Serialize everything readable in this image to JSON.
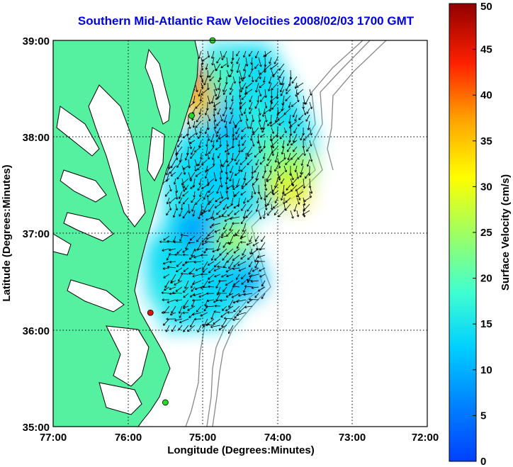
{
  "chart_data": {
    "type": "heatmap",
    "title": "Southern Mid-Atlantic Raw Velocities 2008/02/03 1700 GMT",
    "xlabel": "Longitude (Degrees:Minutes)",
    "ylabel": "Latitude (Degrees:Minutes)",
    "x_ticks": [
      "77:00",
      "76:00",
      "75:00",
      "74:00",
      "73:00",
      "72:00"
    ],
    "y_ticks": [
      "39:00",
      "38:00",
      "37:00",
      "36:00",
      "35:00"
    ],
    "xlim": [
      -77,
      -72
    ],
    "ylim": [
      35,
      39
    ],
    "grid": true,
    "colorbar": {
      "label": "Surface Velocity (cm/s)",
      "range": [
        0,
        50
      ],
      "ticks": [
        "0",
        "5",
        "10",
        "15",
        "20",
        "25",
        "30",
        "35",
        "40",
        "45",
        "50"
      ],
      "colormap": "jet"
    },
    "velocity_regions": [
      {
        "lon": -75.1,
        "lat": 38.55,
        "speed": 45
      },
      {
        "lon": -75.05,
        "lat": 38.35,
        "speed": 35
      },
      {
        "lon": -74.75,
        "lat": 38.65,
        "speed": 20
      },
      {
        "lon": -74.6,
        "lat": 38.1,
        "speed": 10
      },
      {
        "lon": -74.3,
        "lat": 38.2,
        "speed": 17
      },
      {
        "lon": -74.05,
        "lat": 37.85,
        "speed": 22
      },
      {
        "lon": -74.0,
        "lat": 37.5,
        "speed": 28
      },
      {
        "lon": -73.8,
        "lat": 37.45,
        "speed": 32
      },
      {
        "lon": -73.75,
        "lat": 37.7,
        "speed": 26
      },
      {
        "lon": -74.8,
        "lat": 37.55,
        "speed": 12
      },
      {
        "lon": -75.25,
        "lat": 37.3,
        "speed": 15
      },
      {
        "lon": -75.1,
        "lat": 37.05,
        "speed": 8
      },
      {
        "lon": -74.6,
        "lat": 36.95,
        "speed": 26
      },
      {
        "lon": -74.85,
        "lat": 36.55,
        "speed": 13
      },
      {
        "lon": -75.4,
        "lat": 36.4,
        "speed": 16
      },
      {
        "lon": -74.4,
        "lat": 36.5,
        "speed": 10
      }
    ],
    "station_markers": [
      {
        "lon": -74.87,
        "lat": 39.0,
        "status": "green"
      },
      {
        "lon": -75.15,
        "lat": 38.22,
        "status": "green"
      },
      {
        "lon": -75.7,
        "lat": 36.18,
        "status": "red"
      },
      {
        "lon": -75.5,
        "lat": 35.25,
        "status": "green"
      }
    ]
  },
  "colors": {
    "title": "#0000e6",
    "land": "#55f0a0",
    "coastline": "#000000",
    "bathymetry": "#888888",
    "station_ok": "#22dd22",
    "station_down": "#dd1111"
  }
}
